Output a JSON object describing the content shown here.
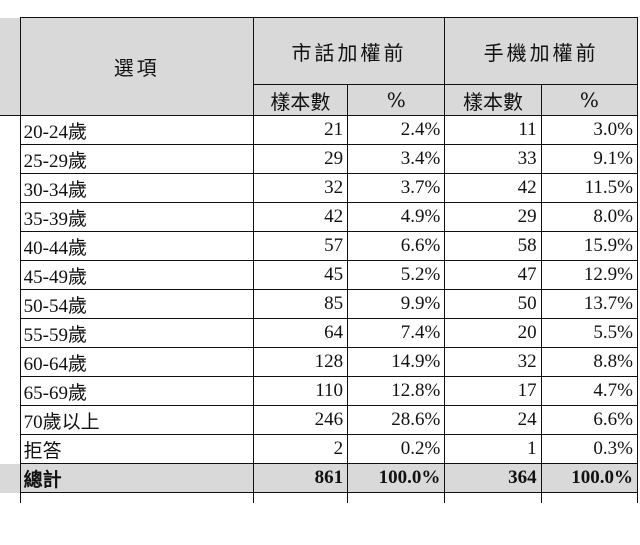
{
  "header": {
    "option": "選項",
    "landline": "市話加權前",
    "mobile": "手機加權前",
    "count": "樣本數",
    "pct": "%"
  },
  "rows": [
    {
      "label": "20-24歲",
      "l_n": "21",
      "l_p": "2.4%",
      "m_n": "11",
      "m_p": "3.0%"
    },
    {
      "label": "25-29歲",
      "l_n": "29",
      "l_p": "3.4%",
      "m_n": "33",
      "m_p": "9.1%"
    },
    {
      "label": "30-34歲",
      "l_n": "32",
      "l_p": "3.7%",
      "m_n": "42",
      "m_p": "11.5%"
    },
    {
      "label": "35-39歲",
      "l_n": "42",
      "l_p": "4.9%",
      "m_n": "29",
      "m_p": "8.0%"
    },
    {
      "label": "40-44歲",
      "l_n": "57",
      "l_p": "6.6%",
      "m_n": "58",
      "m_p": "15.9%"
    },
    {
      "label": "45-49歲",
      "l_n": "45",
      "l_p": "5.2%",
      "m_n": "47",
      "m_p": "12.9%"
    },
    {
      "label": "50-54歲",
      "l_n": "85",
      "l_p": "9.9%",
      "m_n": "50",
      "m_p": "13.7%"
    },
    {
      "label": "55-59歲",
      "l_n": "64",
      "l_p": "7.4%",
      "m_n": "20",
      "m_p": "5.5%"
    },
    {
      "label": "60-64歲",
      "l_n": "128",
      "l_p": "14.9%",
      "m_n": "32",
      "m_p": "8.8%"
    },
    {
      "label": "65-69歲",
      "l_n": "110",
      "l_p": "12.8%",
      "m_n": "17",
      "m_p": "4.7%"
    },
    {
      "label": "70歲以上",
      "l_n": "246",
      "l_p": "28.6%",
      "m_n": "24",
      "m_p": "6.6%"
    },
    {
      "label": "拒答",
      "l_n": "2",
      "l_p": "0.2%",
      "m_n": "1",
      "m_p": "0.3%"
    }
  ],
  "total": {
    "label": "總計",
    "l_n": "861",
    "l_p": "100.0%",
    "m_n": "364",
    "m_p": "100.0%"
  }
}
